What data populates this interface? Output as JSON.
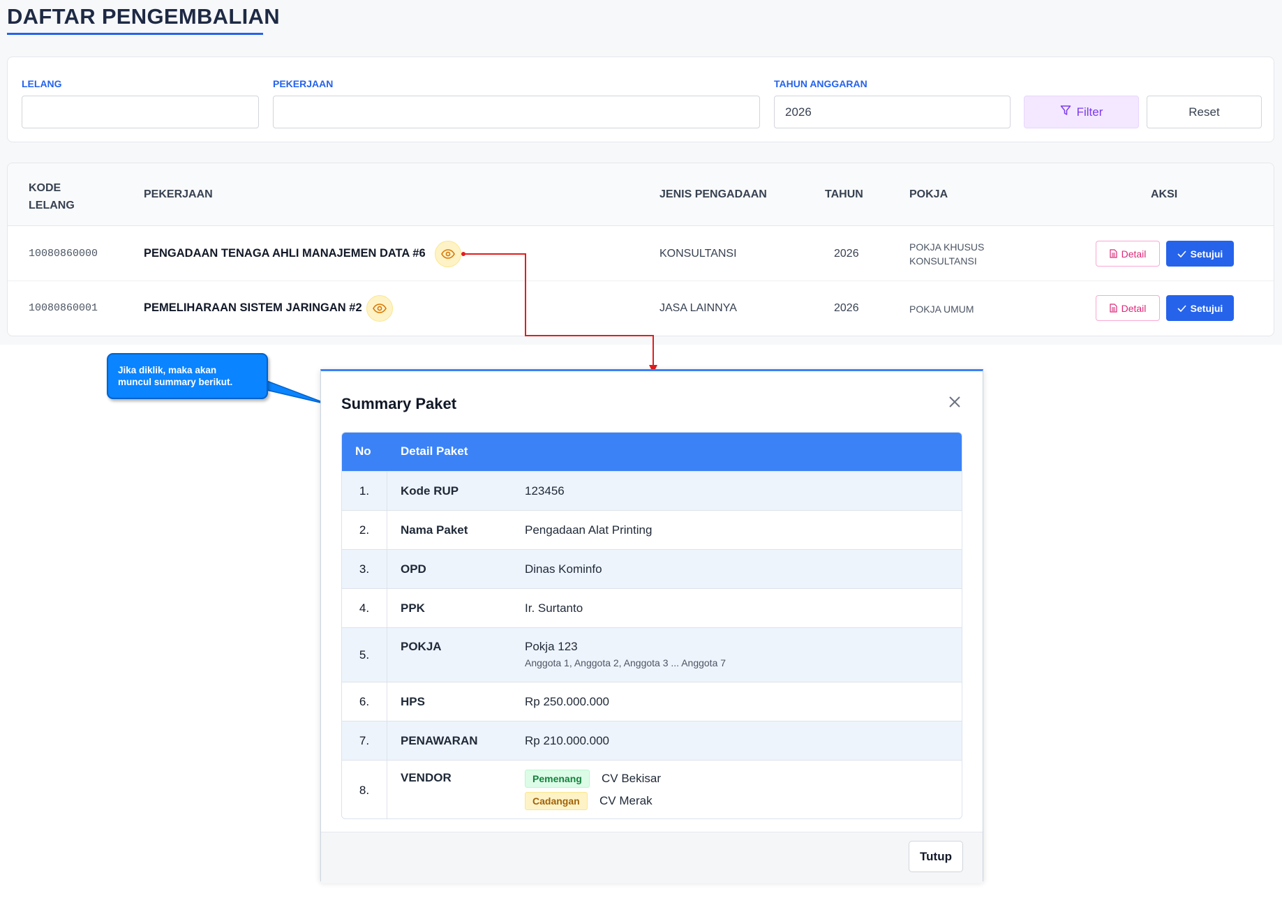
{
  "page": {
    "title": "DAFTAR PENGEMBALIAN"
  },
  "filters": {
    "lelang_label": "LELANG",
    "lelang_value": "",
    "pekerjaan_label": "PEKERJAAN",
    "pekerjaan_value": "",
    "tahun_label": "TAHUN ANGGARAN",
    "tahun_value": "2026",
    "filter_button": "Filter",
    "reset_button": "Reset"
  },
  "table": {
    "headers": {
      "kode_line1": "KODE",
      "kode_line2": "LELANG",
      "pekerjaan": "PEKERJAAN",
      "jenis": "JENIS PENGADAAN",
      "tahun": "TAHUN",
      "pokja": "POKJA",
      "aksi": "AKSI"
    },
    "rows": [
      {
        "kode": "10080860000",
        "pekerjaan": "PENGADAAN TENAGA AHLI MANAJEMEN DATA #6",
        "jenis": "KONSULTANSI",
        "tahun": "2026",
        "pokja_line1": "POKJA KHUSUS",
        "pokja_line2": "KONSULTANSI",
        "detail_label": "Detail",
        "approve_label": "Setujui"
      },
      {
        "kode": "10080860001",
        "pekerjaan": "PEMELIHARAAN SISTEM JARINGAN #2",
        "jenis": "JASA LAINNYA",
        "tahun": "2026",
        "pokja_line1": "POKJA UMUM",
        "pokja_line2": "",
        "detail_label": "Detail",
        "approve_label": "Setujui"
      }
    ]
  },
  "callout": {
    "line1": "Jika diklik, maka akan",
    "line2": "muncul summary berikut."
  },
  "modal": {
    "title": "Summary Paket",
    "col_no": "No",
    "col_detail": "Detail Paket",
    "rows": [
      {
        "no": "1.",
        "key": "Kode RUP",
        "value": "123456"
      },
      {
        "no": "2.",
        "key": "Nama Paket",
        "value": "Pengadaan Alat Printing"
      },
      {
        "no": "3.",
        "key": "OPD",
        "value": "Dinas Kominfo"
      },
      {
        "no": "4.",
        "key": "PPK",
        "value": "Ir. Surtanto"
      },
      {
        "no": "5.",
        "key": "POKJA",
        "value": "Pokja 123",
        "sub": "Anggota 1, Anggota 2, Anggota 3 ... Anggota 7"
      },
      {
        "no": "6.",
        "key": "HPS",
        "value": "Rp 250.000.000"
      },
      {
        "no": "7.",
        "key": "PENAWARAN",
        "value": "Rp 210.000.000"
      },
      {
        "no": "8.",
        "key": "VENDOR",
        "vendors": [
          {
            "badge": "Pemenang",
            "name": "CV Bekisar"
          },
          {
            "badge": "Cadangan",
            "name": "CV Merak"
          }
        ]
      }
    ],
    "close_button": "Tutup"
  },
  "colors": {
    "accent": "#2563eb",
    "modal_header": "#3b82f6",
    "arrow": "#e11d1d",
    "callout": "#0a84ff"
  }
}
